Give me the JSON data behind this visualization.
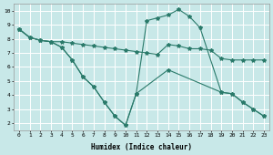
{
  "xlabel": "Humidex (Indice chaleur)",
  "bg_color": "#c8e8e8",
  "grid_color": "#ffffff",
  "line_color": "#2a7a6a",
  "xlim": [
    -0.5,
    23.5
  ],
  "ylim": [
    1.5,
    10.5
  ],
  "yticks": [
    2,
    3,
    4,
    5,
    6,
    7,
    8,
    9,
    10
  ],
  "xticks": [
    0,
    1,
    2,
    3,
    4,
    5,
    6,
    7,
    8,
    9,
    10,
    11,
    12,
    13,
    14,
    15,
    16,
    17,
    18,
    19,
    20,
    21,
    22,
    23
  ],
  "line1_x": [
    0,
    1,
    2,
    3,
    4,
    5,
    6,
    7,
    8,
    9,
    10,
    11,
    12,
    13,
    14,
    15,
    16,
    17,
    18,
    19,
    20,
    21,
    22,
    23
  ],
  "line1_y": [
    8.7,
    8.1,
    7.9,
    7.8,
    7.8,
    7.7,
    7.6,
    7.5,
    7.4,
    7.3,
    7.2,
    7.1,
    7.0,
    6.9,
    7.6,
    7.5,
    7.3,
    7.3,
    7.2,
    6.6,
    6.5,
    6.5,
    6.5,
    6.5
  ],
  "line2_x": [
    0,
    1,
    2,
    3,
    4,
    5,
    6,
    7,
    8,
    9,
    10,
    11,
    14,
    19,
    20,
    21,
    22,
    23
  ],
  "line2_y": [
    8.7,
    8.1,
    7.9,
    7.8,
    7.4,
    6.5,
    5.3,
    4.6,
    3.5,
    2.5,
    1.85,
    4.1,
    5.8,
    4.2,
    4.1,
    3.5,
    3.0,
    2.5
  ],
  "line3_x": [
    0,
    1,
    2,
    3,
    4,
    5,
    6,
    7,
    8,
    9,
    10,
    11,
    12,
    13,
    14,
    15,
    16,
    17,
    19,
    20,
    21,
    22,
    23
  ],
  "line3_y": [
    8.7,
    8.1,
    7.9,
    7.8,
    7.4,
    6.5,
    5.3,
    4.6,
    3.5,
    2.5,
    1.85,
    4.1,
    9.3,
    9.5,
    9.7,
    10.1,
    9.6,
    8.8,
    4.2,
    4.1,
    3.5,
    3.0,
    2.5
  ]
}
